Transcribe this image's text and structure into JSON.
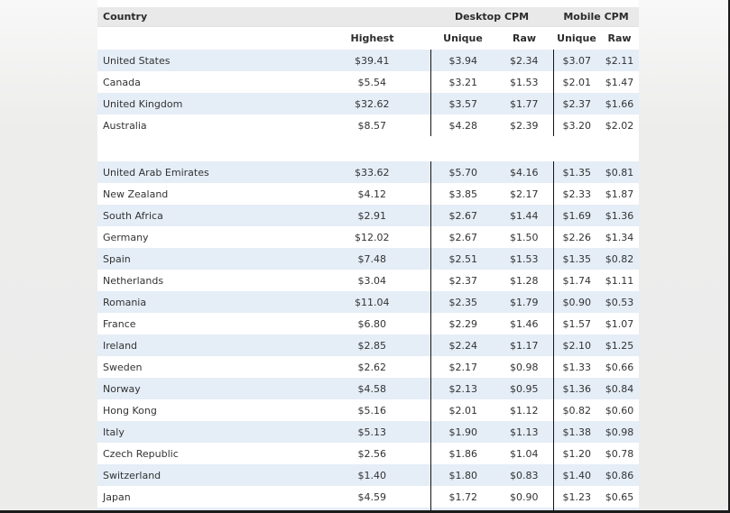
{
  "page": {
    "background_top_color": "#f8f8f8",
    "background_bottom_color": "#ececeb",
    "frame_border_color": "#1b1b1b",
    "panel_background": "#ffffff"
  },
  "table": {
    "colors": {
      "header_background": "#e9e9e9",
      "stripe_background": "#e5edf7",
      "divider_line": "#151515",
      "text": "#333333"
    },
    "header": {
      "country_label": "Country",
      "desktop_cpm_label": "Desktop CPM",
      "mobile_cpm_label": "Mobile CPM",
      "highest_label": "Highest",
      "desktop_unique_label": "Unique",
      "desktop_raw_label": "Raw",
      "mobile_unique_label": "Unique",
      "mobile_raw_label": "Raw"
    },
    "groups": [
      {
        "rows": [
          {
            "country": "United States",
            "highest": "$39.41",
            "desktop_unique": "$3.94",
            "desktop_raw": "$2.34",
            "mobile_unique": "$3.07",
            "mobile_raw": "$2.11"
          },
          {
            "country": "Canada",
            "highest": "$5.54",
            "desktop_unique": "$3.21",
            "desktop_raw": "$1.53",
            "mobile_unique": "$2.01",
            "mobile_raw": "$1.47"
          },
          {
            "country": "United Kingdom",
            "highest": "$32.62",
            "desktop_unique": "$3.57",
            "desktop_raw": "$1.77",
            "mobile_unique": "$2.37",
            "mobile_raw": "$1.66"
          },
          {
            "country": "Australia",
            "highest": "$8.57",
            "desktop_unique": "$4.28",
            "desktop_raw": "$2.39",
            "mobile_unique": "$3.20",
            "mobile_raw": "$2.02"
          }
        ]
      },
      {
        "rows": [
          {
            "country": "United Arab Emirates",
            "highest": "$33.62",
            "desktop_unique": "$5.70",
            "desktop_raw": "$4.16",
            "mobile_unique": "$1.35",
            "mobile_raw": "$0.81"
          },
          {
            "country": "New Zealand",
            "highest": "$4.12",
            "desktop_unique": "$3.85",
            "desktop_raw": "$2.17",
            "mobile_unique": "$2.33",
            "mobile_raw": "$1.87"
          },
          {
            "country": "South Africa",
            "highest": "$2.91",
            "desktop_unique": "$2.67",
            "desktop_raw": "$1.44",
            "mobile_unique": "$1.69",
            "mobile_raw": "$1.36"
          },
          {
            "country": "Germany",
            "highest": "$12.02",
            "desktop_unique": "$2.67",
            "desktop_raw": "$1.50",
            "mobile_unique": "$2.26",
            "mobile_raw": "$1.34"
          },
          {
            "country": "Spain",
            "highest": "$7.48",
            "desktop_unique": "$2.51",
            "desktop_raw": "$1.53",
            "mobile_unique": "$1.35",
            "mobile_raw": "$0.82"
          },
          {
            "country": "Netherlands",
            "highest": "$3.04",
            "desktop_unique": "$2.37",
            "desktop_raw": "$1.28",
            "mobile_unique": "$1.74",
            "mobile_raw": "$1.11"
          },
          {
            "country": "Romania",
            "highest": "$11.04",
            "desktop_unique": "$2.35",
            "desktop_raw": "$1.79",
            "mobile_unique": "$0.90",
            "mobile_raw": "$0.53"
          },
          {
            "country": "France",
            "highest": "$6.80",
            "desktop_unique": "$2.29",
            "desktop_raw": "$1.46",
            "mobile_unique": "$1.57",
            "mobile_raw": "$1.07"
          },
          {
            "country": "Ireland",
            "highest": "$2.85",
            "desktop_unique": "$2.24",
            "desktop_raw": "$1.17",
            "mobile_unique": "$2.10",
            "mobile_raw": "$1.25"
          },
          {
            "country": "Sweden",
            "highest": "$2.62",
            "desktop_unique": "$2.17",
            "desktop_raw": "$0.98",
            "mobile_unique": "$1.33",
            "mobile_raw": "$0.66"
          },
          {
            "country": "Norway",
            "highest": "$4.58",
            "desktop_unique": "$2.13",
            "desktop_raw": "$0.95",
            "mobile_unique": "$1.36",
            "mobile_raw": "$0.84"
          },
          {
            "country": "Hong Kong",
            "highest": "$5.16",
            "desktop_unique": "$2.01",
            "desktop_raw": "$1.12",
            "mobile_unique": "$0.82",
            "mobile_raw": "$0.60"
          },
          {
            "country": "Italy",
            "highest": "$5.13",
            "desktop_unique": "$1.90",
            "desktop_raw": "$1.13",
            "mobile_unique": "$1.38",
            "mobile_raw": "$0.98"
          },
          {
            "country": "Czech Republic",
            "highest": "$2.56",
            "desktop_unique": "$1.86",
            "desktop_raw": "$1.04",
            "mobile_unique": "$1.20",
            "mobile_raw": "$0.78"
          },
          {
            "country": "Switzerland",
            "highest": "$1.40",
            "desktop_unique": "$1.80",
            "desktop_raw": "$0.83",
            "mobile_unique": "$1.40",
            "mobile_raw": "$0.86"
          },
          {
            "country": "Japan",
            "highest": "$4.59",
            "desktop_unique": "$1.72",
            "desktop_raw": "$0.90",
            "mobile_unique": "$1.23",
            "mobile_raw": "$0.65"
          }
        ]
      }
    ]
  }
}
